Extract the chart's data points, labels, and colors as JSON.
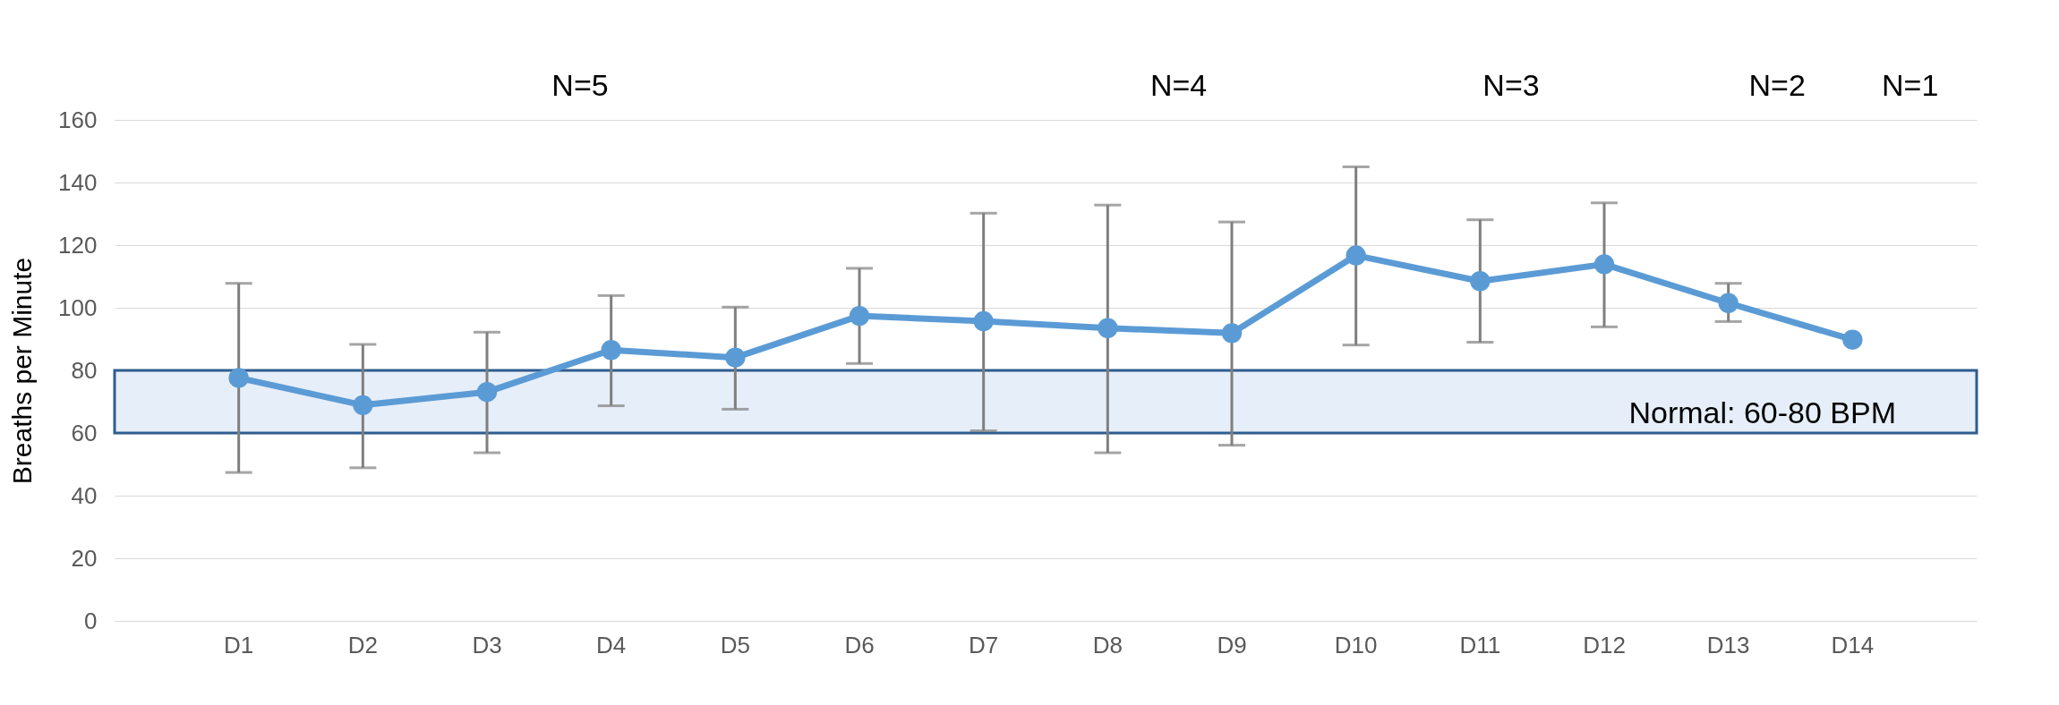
{
  "chart_data": {
    "type": "line",
    "ylabel": "Breaths per Minute",
    "categories": [
      "D1",
      "D2",
      "D3",
      "D4",
      "D5",
      "D6",
      "D7",
      "D8",
      "D9",
      "D10",
      "D11",
      "D12",
      "D13",
      "D14"
    ],
    "series": [
      {
        "color": "#5b9bd5",
        "values": [
          77.6,
          68.9,
          73.1,
          86.5,
          84.1,
          97.4,
          95.7,
          93.5,
          91.9,
          116.7,
          108.5,
          113.9,
          101.5,
          89.8
        ],
        "errors": [
          [
            47.4,
            107.8
          ],
          [
            48.9,
            88.3
          ],
          [
            53.7,
            92.2
          ],
          [
            68.7,
            103.9
          ],
          [
            67.6,
            100.2
          ],
          [
            82.2,
            112.6
          ],
          [
            60.7,
            130.2
          ],
          [
            53.7,
            132.8
          ],
          [
            56.1,
            127.4
          ],
          [
            88.1,
            145
          ],
          [
            89,
            128.1
          ],
          [
            93.9,
            133.5
          ],
          [
            95.6,
            107.8
          ],
          null
        ]
      }
    ],
    "ylim": [
      0,
      160
    ],
    "yticks": [
      0,
      20,
      40,
      60,
      80,
      100,
      120,
      140,
      160
    ],
    "grid": "y",
    "legend": false,
    "marker": "circle",
    "line_style": "solid",
    "bands": [
      {
        "axis": "y",
        "from": 60,
        "to": 80,
        "label": "Normal: 60-80 BPM",
        "color": "#e6eef9"
      }
    ],
    "annotations": [
      "N=5",
      "N=4",
      "N=3",
      "N=2",
      "N=1"
    ]
  }
}
